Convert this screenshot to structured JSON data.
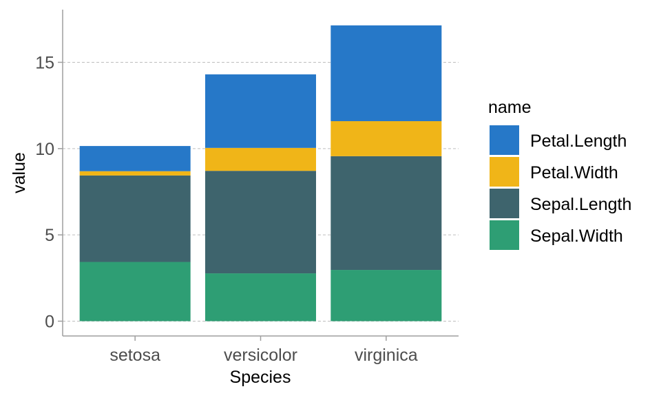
{
  "chart_data": {
    "type": "bar",
    "stacked": true,
    "categories": [
      "setosa",
      "versicolor",
      "virginica"
    ],
    "series": [
      {
        "name": "Sepal.Width",
        "color": "#2E9E74",
        "values": [
          3.43,
          2.77,
          2.97
        ]
      },
      {
        "name": "Sepal.Length",
        "color": "#3E646D",
        "values": [
          5.01,
          5.94,
          6.59
        ]
      },
      {
        "name": "Petal.Width",
        "color": "#F0B518",
        "values": [
          0.25,
          1.33,
          2.03
        ]
      },
      {
        "name": "Petal.Length",
        "color": "#2678C8",
        "values": [
          1.46,
          4.26,
          5.55
        ]
      }
    ],
    "xlabel": "Species",
    "ylabel": "value",
    "ylim": [
      0,
      17.5
    ],
    "yticks": [
      0,
      5,
      10,
      15
    ],
    "grid": "horizontal-dashed",
    "legend": {
      "title": "name",
      "placement": "right",
      "entries": [
        "Petal.Length",
        "Petal.Width",
        "Sepal.Length",
        "Sepal.Width"
      ]
    }
  }
}
